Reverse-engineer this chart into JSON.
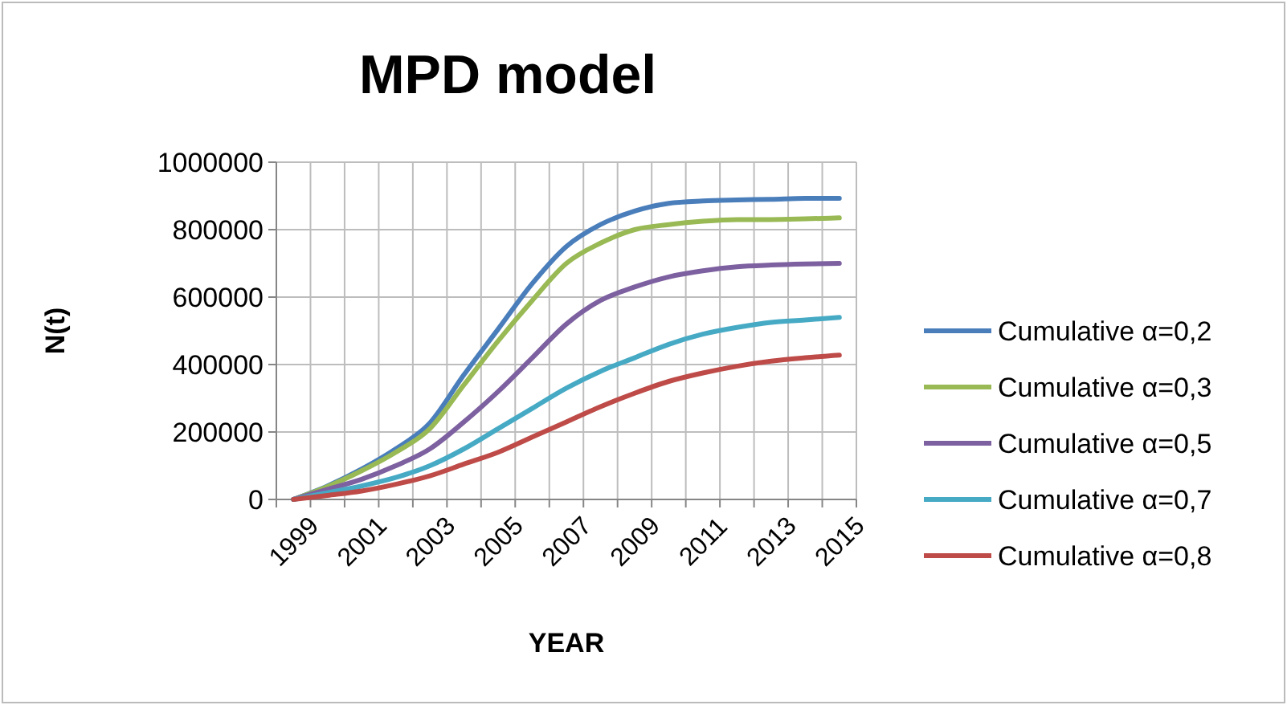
{
  "chart_data": {
    "type": "line",
    "title": "MPD model",
    "xlabel": "YEAR",
    "ylabel": "N(t)",
    "categories": [
      "1999",
      null,
      "2001",
      null,
      "2003",
      null,
      "2005",
      null,
      "2007",
      null,
      "2009",
      null,
      "2011",
      null,
      "2013",
      null,
      "2015"
    ],
    "ylim": [
      0,
      1000000
    ],
    "yticks": [
      0,
      200000,
      400000,
      600000,
      800000,
      1000000
    ],
    "grid": true,
    "legend": "right",
    "marker": "none",
    "line_style": "solid",
    "series": [
      {
        "name": "Cumulative α=0,2",
        "color": "#4a7ebb",
        "values": [
          0,
          40000,
          90000,
          150000,
          227000,
          370000,
          505000,
          640000,
          750000,
          815000,
          855000,
          878000,
          885000,
          888000,
          890000,
          893000,
          893000
        ]
      },
      {
        "name": "Cumulative α=0,3",
        "color": "#98b954",
        "values": [
          0,
          38000,
          85000,
          140000,
          210000,
          340000,
          470000,
          590000,
          700000,
          760000,
          800000,
          815000,
          825000,
          830000,
          830000,
          832000,
          835000
        ]
      },
      {
        "name": "Cumulative α=0,5",
        "color": "#7d60a0",
        "values": [
          0,
          30000,
          60000,
          100000,
          150000,
          230000,
          320000,
          420000,
          520000,
          590000,
          630000,
          660000,
          678000,
          690000,
          695000,
          698000,
          700000
        ]
      },
      {
        "name": "Cumulative α=0,7",
        "color": "#46aac5",
        "values": [
          0,
          20000,
          40000,
          65000,
          100000,
          150000,
          210000,
          270000,
          330000,
          380000,
          420000,
          460000,
          490000,
          510000,
          525000,
          532000,
          540000
        ]
      },
      {
        "name": "Cumulative α=0,8",
        "color": "#be4b48",
        "values": [
          0,
          12000,
          25000,
          45000,
          70000,
          105000,
          140000,
          185000,
          230000,
          275000,
          315000,
          350000,
          375000,
          395000,
          410000,
          420000,
          428000
        ]
      }
    ]
  }
}
